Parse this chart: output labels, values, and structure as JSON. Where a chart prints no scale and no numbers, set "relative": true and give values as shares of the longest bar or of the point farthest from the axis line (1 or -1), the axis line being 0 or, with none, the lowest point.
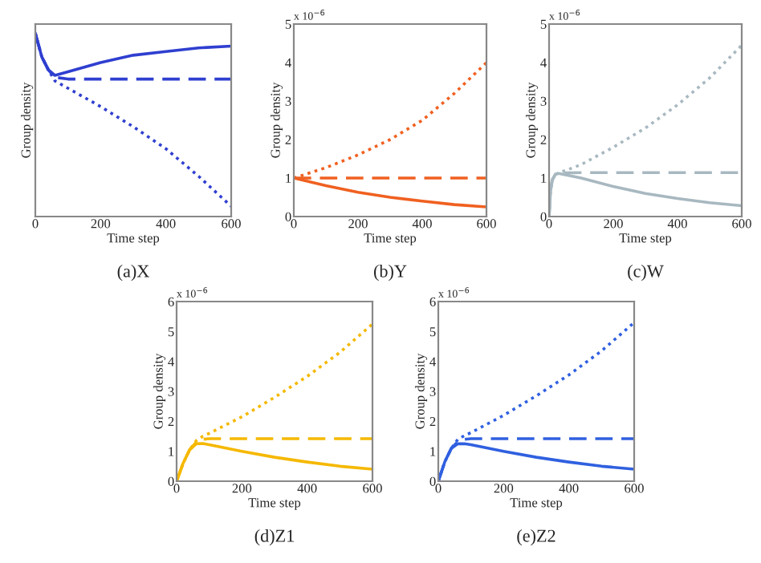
{
  "chart_data": [
    {
      "type": "line",
      "title": "(a)X",
      "xlabel": "Time step",
      "ylabel": "Group density",
      "relative": true,
      "tick_labels": "x",
      "xlim": [
        0,
        600
      ],
      "xticks": [
        0,
        200,
        400,
        600
      ],
      "x": [
        0,
        20,
        40,
        60,
        100,
        200,
        300,
        400,
        500,
        600
      ],
      "series": [
        {
          "color": "#2f3fd0",
          "line_style": "solid",
          "values": [
            1,
            0.87,
            0.8,
            0.77,
            0.79,
            0.84,
            0.88,
            0.9,
            0.92,
            0.93
          ]
        },
        {
          "color": "#2f3fd0",
          "line_style": "dashed",
          "values": [
            1,
            0.87,
            0.8,
            0.76,
            0.75,
            0.75,
            0.75,
            0.75,
            0.75,
            0.75
          ]
        },
        {
          "color": "#2f3fd0",
          "line_style": "dotted",
          "values": [
            1,
            0.87,
            0.8,
            0.74,
            0.7,
            0.6,
            0.49,
            0.37,
            0.22,
            0.056
          ]
        }
      ]
    },
    {
      "type": "line",
      "title": "(b)Y",
      "xlabel": "Time step",
      "ylabel": "Group density",
      "annotations": [
        "x 10$^{−6}$"
      ],
      "xlim": [
        0,
        600
      ],
      "xticks": [
        0,
        200,
        400,
        600
      ],
      "ylim": [
        0,
        5
      ],
      "yticks": [
        0,
        1,
        2,
        3,
        4,
        5
      ],
      "x": [
        0,
        100,
        200,
        300,
        400,
        500,
        600
      ],
      "series": [
        {
          "color": "#f06020",
          "line_style": "solid",
          "values": [
            1,
            0.8,
            0.63,
            0.5,
            0.4,
            0.31,
            0.25
          ]
        },
        {
          "color": "#f06020",
          "line_style": "dashed",
          "values": [
            1,
            1,
            1,
            1,
            1,
            1,
            1
          ]
        },
        {
          "color": "#f06020",
          "line_style": "dotted",
          "values": [
            1,
            1.27,
            1.6,
            2.0,
            2.5,
            3.2,
            4.0
          ]
        }
      ]
    },
    {
      "type": "line",
      "title": "(c)W",
      "xlabel": "Time step",
      "ylabel": "Group density",
      "annotations": [
        "x 10$^{−6}$"
      ],
      "xlim": [
        0,
        600
      ],
      "xticks": [
        0,
        200,
        400,
        600
      ],
      "ylim": [
        0,
        5
      ],
      "yticks": [
        0,
        1,
        2,
        3,
        4,
        5
      ],
      "x": [
        0,
        5,
        10,
        20,
        30,
        100,
        200,
        300,
        400,
        500,
        600
      ],
      "series": [
        {
          "color": "#a8b8c0",
          "line_style": "solid",
          "values": [
            0,
            0.7,
            0.95,
            1.1,
            1.12,
            1.0,
            0.78,
            0.6,
            0.47,
            0.36,
            0.28
          ]
        },
        {
          "color": "#a8b8c0",
          "line_style": "dashed",
          "values": [
            0,
            0.7,
            0.95,
            1.1,
            1.13,
            1.14,
            1.14,
            1.14,
            1.14,
            1.14,
            1.14
          ]
        },
        {
          "color": "#a8b8c0",
          "line_style": "dotted",
          "values": [
            0,
            0.7,
            0.95,
            1.1,
            1.13,
            1.35,
            1.8,
            2.3,
            2.9,
            3.6,
            4.45
          ]
        }
      ]
    },
    {
      "type": "line",
      "title": "(d)Z1",
      "xlabel": "Time step",
      "ylabel": "Group density",
      "annotations": [
        "x 10$^{−6}$"
      ],
      "xlim": [
        0,
        600
      ],
      "xticks": [
        0,
        200,
        400,
        600
      ],
      "ylim": [
        0,
        6
      ],
      "yticks": [
        0,
        1,
        2,
        3,
        4,
        5,
        6
      ],
      "x": [
        0,
        20,
        40,
        60,
        80,
        100,
        200,
        300,
        400,
        500,
        600
      ],
      "series": [
        {
          "color": "#f5b800",
          "line_style": "solid",
          "values": [
            0,
            0.6,
            1.05,
            1.25,
            1.26,
            1.22,
            1.0,
            0.8,
            0.64,
            0.5,
            0.4
          ]
        },
        {
          "color": "#f5b800",
          "line_style": "dashed",
          "values": [
            0,
            0.6,
            1.05,
            1.3,
            1.4,
            1.42,
            1.42,
            1.42,
            1.42,
            1.42,
            1.42
          ]
        },
        {
          "color": "#f5b800",
          "line_style": "dotted",
          "values": [
            0,
            0.6,
            1.05,
            1.35,
            1.5,
            1.6,
            2.15,
            2.8,
            3.5,
            4.3,
            5.25
          ]
        }
      ]
    },
    {
      "type": "line",
      "title": "(e)Z2",
      "xlabel": "Time step",
      "ylabel": "Group density",
      "annotations": [
        "x 10$^{−6}$"
      ],
      "xlim": [
        0,
        600
      ],
      "xticks": [
        0,
        200,
        400,
        600
      ],
      "ylim": [
        0,
        6
      ],
      "yticks": [
        0,
        1,
        2,
        3,
        4,
        5,
        6
      ],
      "x": [
        0,
        20,
        40,
        60,
        80,
        100,
        200,
        300,
        400,
        500,
        600
      ],
      "series": [
        {
          "color": "#3060e0",
          "line_style": "solid",
          "values": [
            0,
            0.65,
            1.1,
            1.25,
            1.25,
            1.22,
            1.0,
            0.8,
            0.64,
            0.5,
            0.4
          ]
        },
        {
          "color": "#3060e0",
          "line_style": "dashed",
          "values": [
            0,
            0.65,
            1.1,
            1.32,
            1.4,
            1.42,
            1.42,
            1.42,
            1.42,
            1.42,
            1.42
          ]
        },
        {
          "color": "#3060e0",
          "line_style": "dotted",
          "values": [
            0,
            0.65,
            1.1,
            1.4,
            1.52,
            1.62,
            2.2,
            2.85,
            3.55,
            4.35,
            5.3
          ]
        }
      ]
    }
  ]
}
